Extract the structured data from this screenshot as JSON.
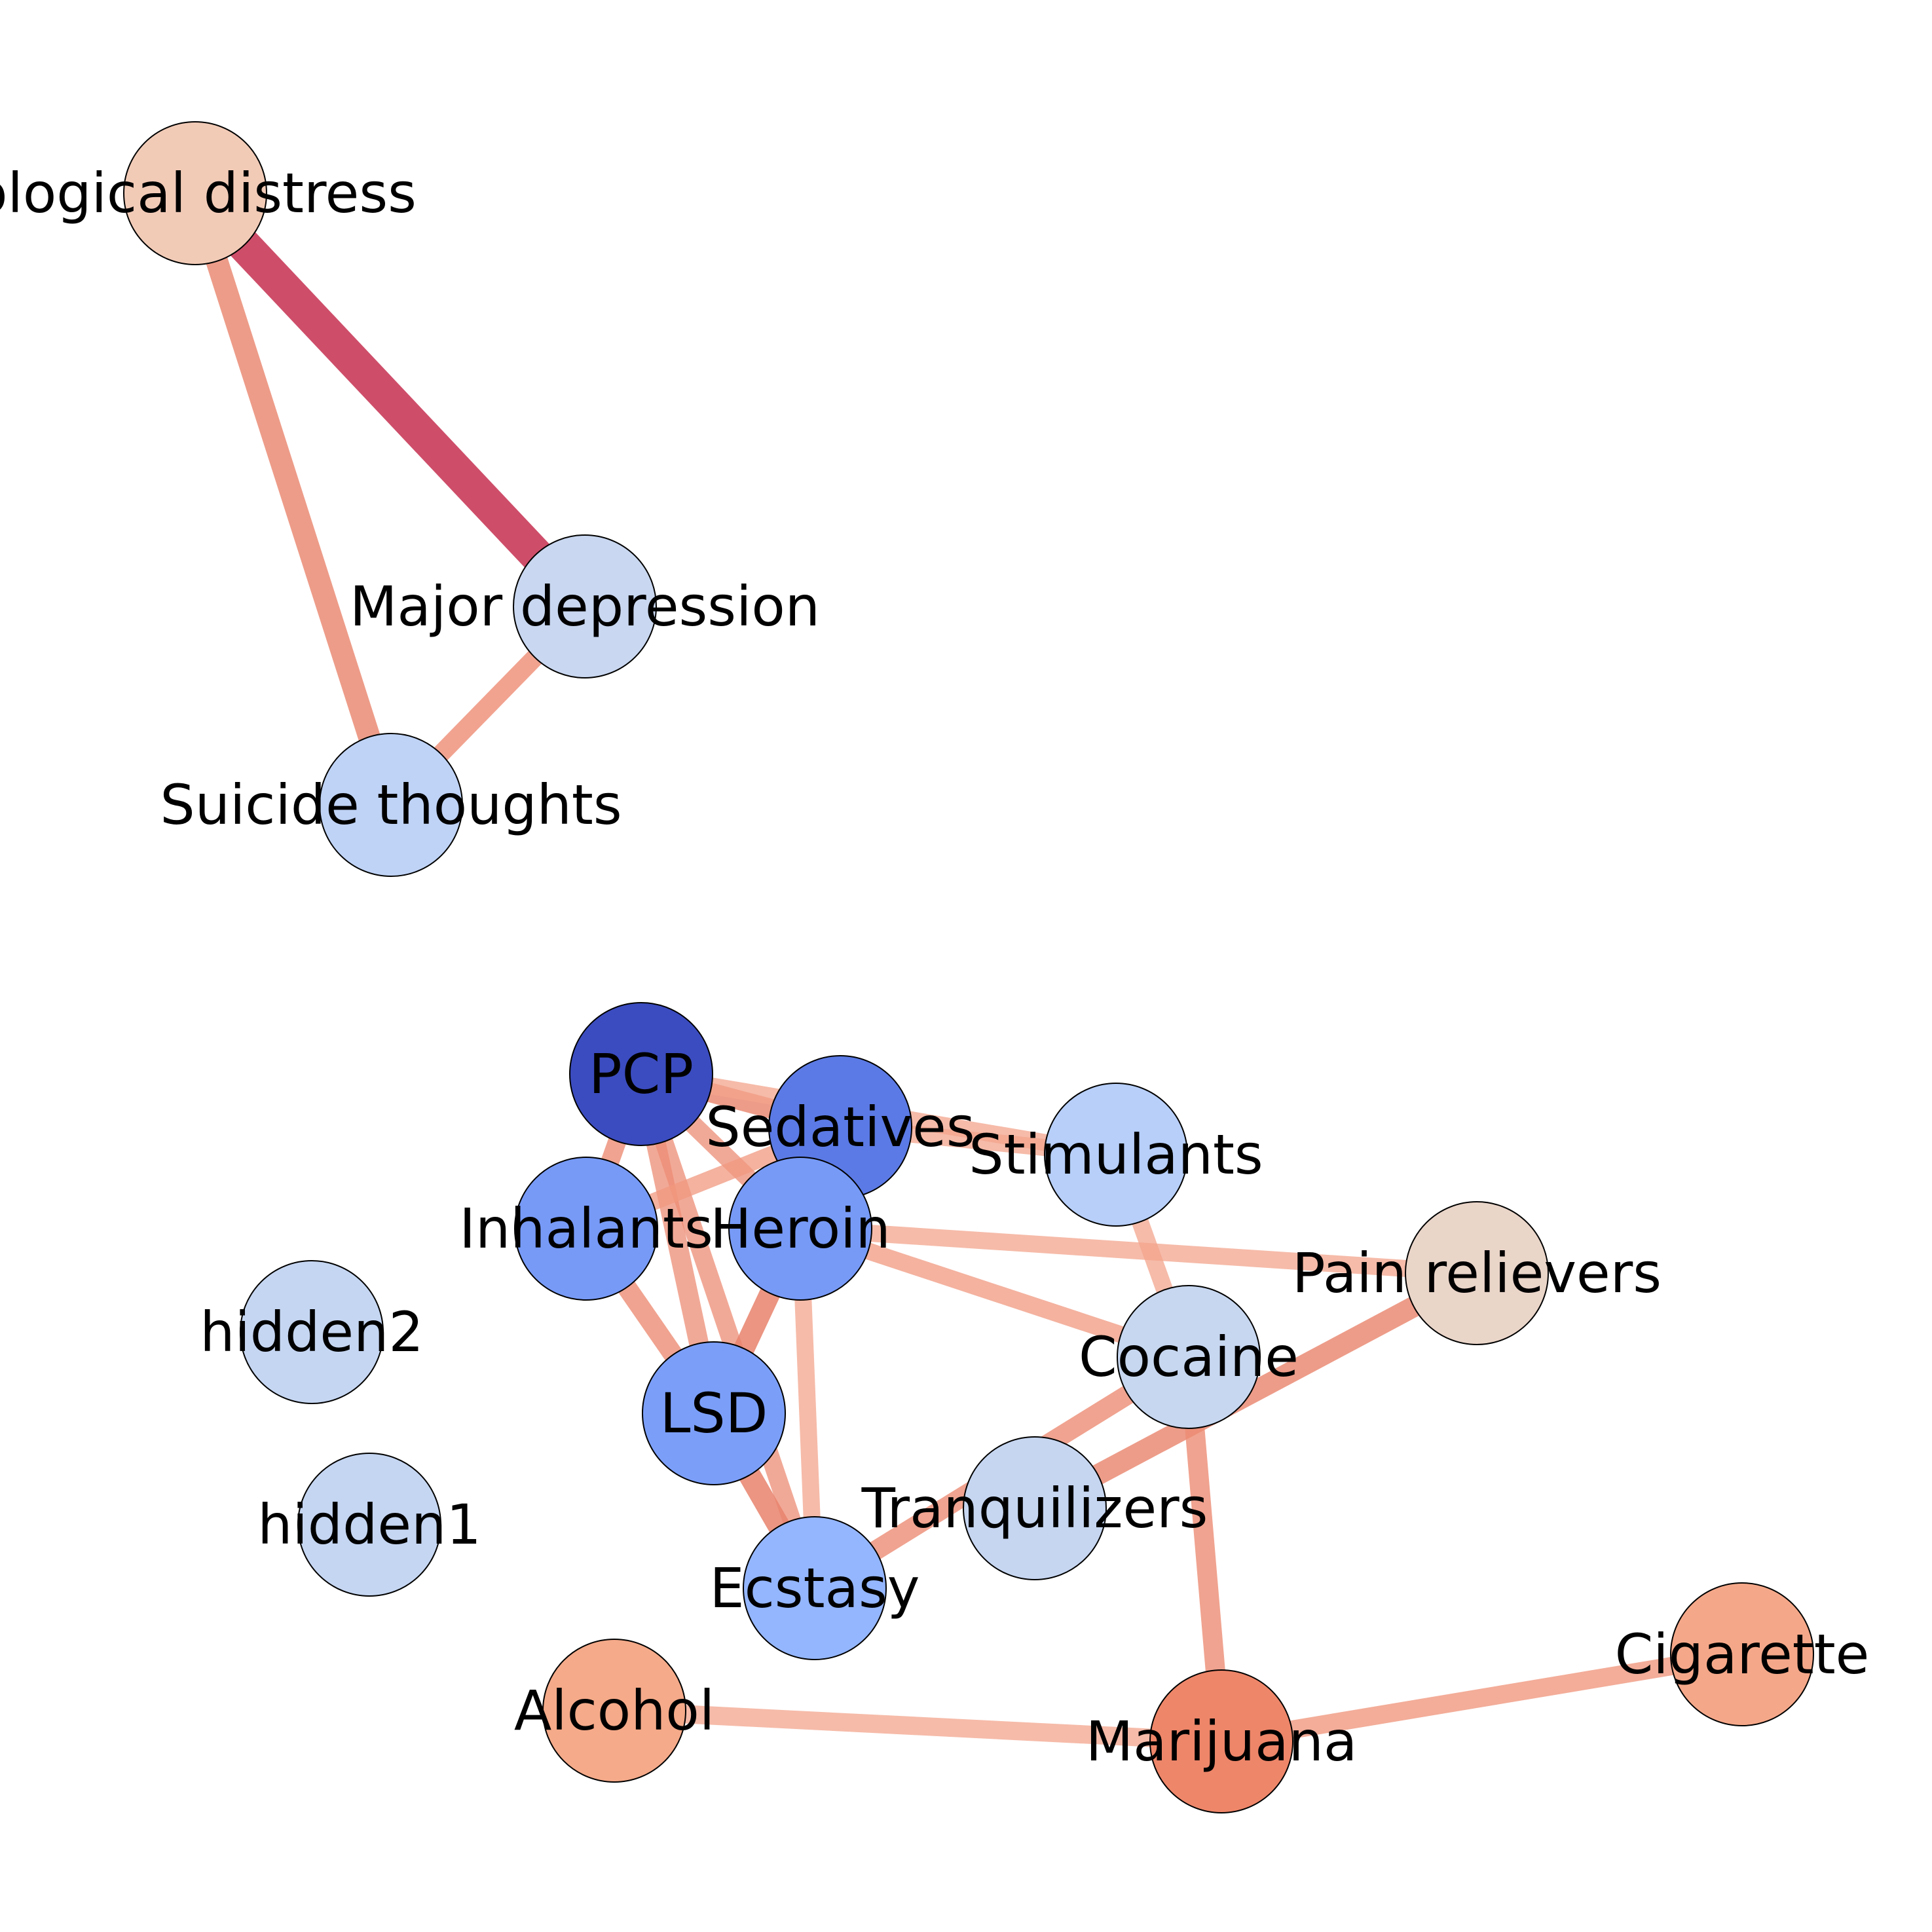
{
  "diagram": {
    "type": "network",
    "nodes": [
      {
        "id": "psych",
        "label": "ological distress",
        "color": "#f2cbb7"
      },
      {
        "id": "depression",
        "label": "Major depression",
        "color": "#c9d7f0"
      },
      {
        "id": "suicide",
        "label": "Suicide thoughts",
        "color": "#bfd3f6"
      },
      {
        "id": "pcp",
        "label": "PCP",
        "color": "#3b4cc0"
      },
      {
        "id": "sedatives",
        "label": "Sedatives",
        "color": "#5b7ae5"
      },
      {
        "id": "stimulants",
        "label": "Stimulants",
        "color": "#b7cff9"
      },
      {
        "id": "inhalants",
        "label": "Inhalants",
        "color": "#779af7"
      },
      {
        "id": "heroin",
        "label": "Heroin",
        "color": "#779af7"
      },
      {
        "id": "painrelievers",
        "label": "Pain relievers",
        "color": "#ead5c9"
      },
      {
        "id": "hidden2",
        "label": "hidden2",
        "color": "#c5d6f2"
      },
      {
        "id": "cocaine",
        "label": "Cocaine",
        "color": "#c7d7f0"
      },
      {
        "id": "lsd",
        "label": "LSD",
        "color": "#7b9ff9"
      },
      {
        "id": "hidden1",
        "label": "hidden1",
        "color": "#c5d6f2"
      },
      {
        "id": "tranquilizers",
        "label": "Tranquilizers",
        "color": "#c6d6f1"
      },
      {
        "id": "ecstasy",
        "label": "Ecstasy",
        "color": "#94b6ff"
      },
      {
        "id": "cigarette",
        "label": "Cigarette",
        "color": "#f5a889"
      },
      {
        "id": "alcohol",
        "label": "Alcohol",
        "color": "#f5aa89"
      },
      {
        "id": "marijuana",
        "label": "Marijuana",
        "color": "#ee8669"
      }
    ],
    "edges": [
      {
        "source": "psych",
        "target": "depression",
        "color": "#c93b5a",
        "opacity": 0.9,
        "width": 52
      },
      {
        "source": "psych",
        "target": "suicide",
        "color": "#e8836c",
        "opacity": 0.8,
        "width": 34
      },
      {
        "source": "depression",
        "target": "suicide",
        "color": "#ee8c74",
        "opacity": 0.8,
        "width": 28
      },
      {
        "source": "pcp",
        "target": "sedatives",
        "color": "#e8836c",
        "opacity": 0.8,
        "width": 30
      },
      {
        "source": "pcp",
        "target": "stimulants",
        "color": "#f3a48c",
        "opacity": 0.75,
        "width": 26
      },
      {
        "source": "pcp",
        "target": "inhalants",
        "color": "#ec8c74",
        "opacity": 0.8,
        "width": 28
      },
      {
        "source": "pcp",
        "target": "heroin",
        "color": "#ec8c74",
        "opacity": 0.75,
        "width": 28
      },
      {
        "source": "pcp",
        "target": "lsd",
        "color": "#ec8c74",
        "opacity": 0.75,
        "width": 30
      },
      {
        "source": "pcp",
        "target": "ecstasy",
        "color": "#ec8c74",
        "opacity": 0.75,
        "width": 28
      },
      {
        "source": "sedatives",
        "target": "inhalants",
        "color": "#f0987f",
        "opacity": 0.75,
        "width": 26
      },
      {
        "source": "sedatives",
        "target": "heroin",
        "color": "#ec8c74",
        "opacity": 0.75,
        "width": 28
      },
      {
        "source": "sedatives",
        "target": "stimulants",
        "color": "#f3a48c",
        "opacity": 0.75,
        "width": 26
      },
      {
        "source": "inhalants",
        "target": "lsd",
        "color": "#ec8c74",
        "opacity": 0.8,
        "width": 30
      },
      {
        "source": "heroin",
        "target": "lsd",
        "color": "#e8836c",
        "opacity": 0.85,
        "width": 32
      },
      {
        "source": "heroin",
        "target": "ecstasy",
        "color": "#f3a48c",
        "opacity": 0.75,
        "width": 26
      },
      {
        "source": "heroin",
        "target": "painrelievers",
        "color": "#f3a48c",
        "opacity": 0.75,
        "width": 26
      },
      {
        "source": "heroin",
        "target": "cocaine",
        "color": "#f0987f",
        "opacity": 0.75,
        "width": 26
      },
      {
        "source": "stimulants",
        "target": "cocaine",
        "color": "#f3a48c",
        "opacity": 0.75,
        "width": 26
      },
      {
        "source": "lsd",
        "target": "ecstasy",
        "color": "#e8836c",
        "opacity": 0.85,
        "width": 34
      },
      {
        "source": "ecstasy",
        "target": "cocaine",
        "color": "#ec8c74",
        "opacity": 0.8,
        "width": 30
      },
      {
        "source": "tranquilizers",
        "target": "painrelievers",
        "color": "#e8836c",
        "opacity": 0.8,
        "width": 32
      },
      {
        "source": "cocaine",
        "target": "marijuana",
        "color": "#ec8c74",
        "opacity": 0.8,
        "width": 30
      },
      {
        "source": "alcohol",
        "target": "marijuana",
        "color": "#f3a48c",
        "opacity": 0.75,
        "width": 28
      },
      {
        "source": "marijuana",
        "target": "cigarette",
        "color": "#f0987f",
        "opacity": 0.8,
        "width": 28
      }
    ]
  }
}
